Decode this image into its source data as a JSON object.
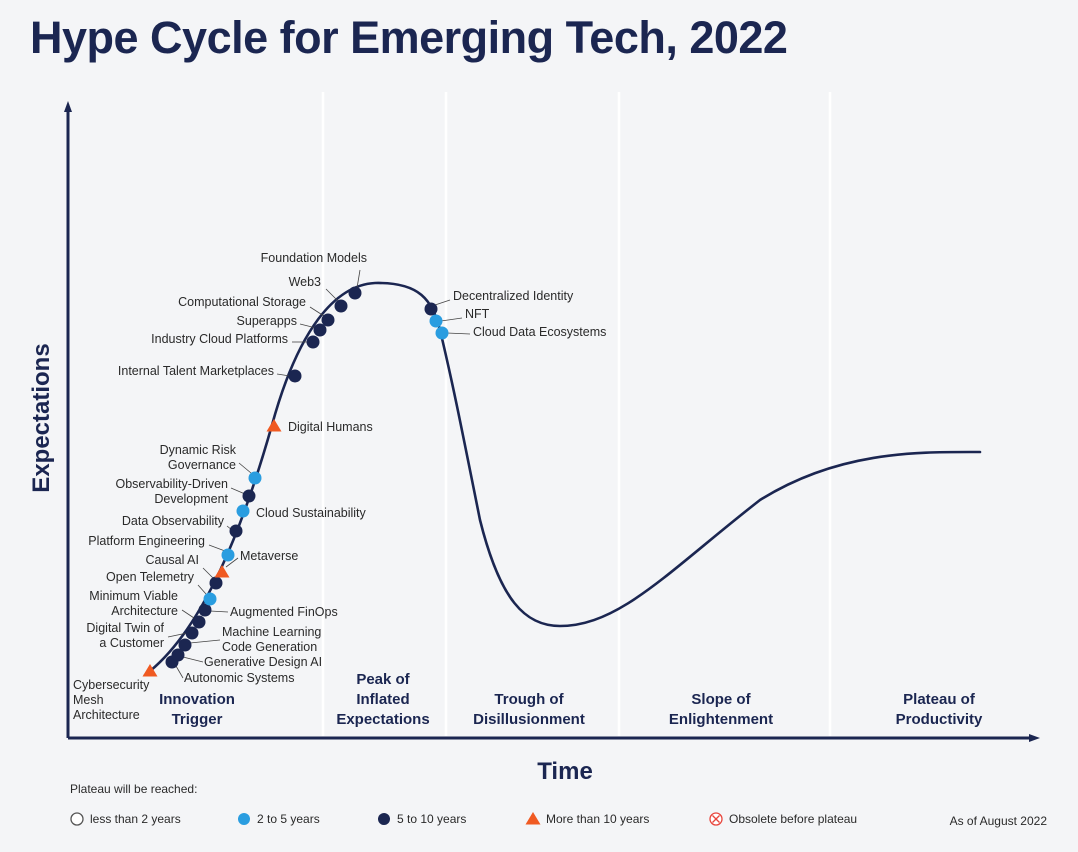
{
  "chart_data": {
    "type": "hype-cycle",
    "title": "Hype Cycle for Emerging Tech, 2022",
    "xlabel": "Time",
    "ylabel": "Expectations",
    "phases": [
      {
        "label": [
          "Innovation",
          "Trigger"
        ]
      },
      {
        "label": [
          "Peak of",
          "Inflated",
          "Expectations"
        ]
      },
      {
        "label": [
          "Trough of",
          "Disillusionment"
        ]
      },
      {
        "label": [
          "Slope of",
          "Enlightenment"
        ]
      },
      {
        "label": [
          "Plateau of",
          "Productivity"
        ]
      }
    ],
    "legend_title": "Plateau will be reached:",
    "legend": [
      {
        "name": "less than 2 years",
        "key": "lt2",
        "marker": "circle-outline"
      },
      {
        "name": "2 to 5 years",
        "key": "2to5",
        "marker": "circle",
        "color": "#2a9de0"
      },
      {
        "name": "5 to 10 years",
        "key": "5to10",
        "marker": "circle",
        "color": "#1b2651"
      },
      {
        "name": "More than 10 years",
        "key": "gt10",
        "marker": "triangle",
        "color": "#f05a22"
      },
      {
        "name": "Obsolete before plateau",
        "key": "obsolete",
        "marker": "circle-x",
        "color": "#e8453c"
      }
    ],
    "as_of": "As of August 2022",
    "technologies": [
      {
        "name": [
          "Cybersecurity",
          "Mesh",
          "Architecture"
        ],
        "key": "gt10"
      },
      {
        "name": [
          "Autonomic Systems"
        ],
        "key": "5to10"
      },
      {
        "name": [
          "Generative Design AI"
        ],
        "key": "5to10"
      },
      {
        "name": [
          "Machine Learning",
          "Code Generation"
        ],
        "key": "5to10"
      },
      {
        "name": [
          "Digital Twin of",
          "a Customer"
        ],
        "key": "5to10"
      },
      {
        "name": [
          "Minimum Viable",
          "Architecture"
        ],
        "key": "5to10"
      },
      {
        "name": [
          "Augmented FinOps"
        ],
        "key": "5to10"
      },
      {
        "name": [
          "Open Telemetry"
        ],
        "key": "2to5"
      },
      {
        "name": [
          "Causal AI"
        ],
        "key": "5to10"
      },
      {
        "name": [
          "Metaverse"
        ],
        "key": "gt10"
      },
      {
        "name": [
          "Platform Engineering"
        ],
        "key": "2to5"
      },
      {
        "name": [
          "Data Observability"
        ],
        "key": "5to10"
      },
      {
        "name": [
          "Cloud Sustainability"
        ],
        "key": "2to5"
      },
      {
        "name": [
          "Observability-Driven",
          "Development"
        ],
        "key": "5to10"
      },
      {
        "name": [
          "Dynamic Risk",
          "Governance"
        ],
        "key": "2to5"
      },
      {
        "name": [
          "Digital Humans"
        ],
        "key": "gt10"
      },
      {
        "name": [
          "Internal Talent Marketplaces"
        ],
        "key": "5to10"
      },
      {
        "name": [
          "Industry Cloud Platforms"
        ],
        "key": "5to10"
      },
      {
        "name": [
          "Superapps"
        ],
        "key": "5to10"
      },
      {
        "name": [
          "Computational Storage"
        ],
        "key": "5to10"
      },
      {
        "name": [
          "Web3"
        ],
        "key": "5to10"
      },
      {
        "name": [
          "Foundation Models"
        ],
        "key": "5to10"
      },
      {
        "name": [
          "Decentralized Identity"
        ],
        "key": "5to10"
      },
      {
        "name": [
          "NFT"
        ],
        "key": "2to5"
      },
      {
        "name": [
          "Cloud Data Ecosystems"
        ],
        "key": "2to5"
      }
    ]
  }
}
